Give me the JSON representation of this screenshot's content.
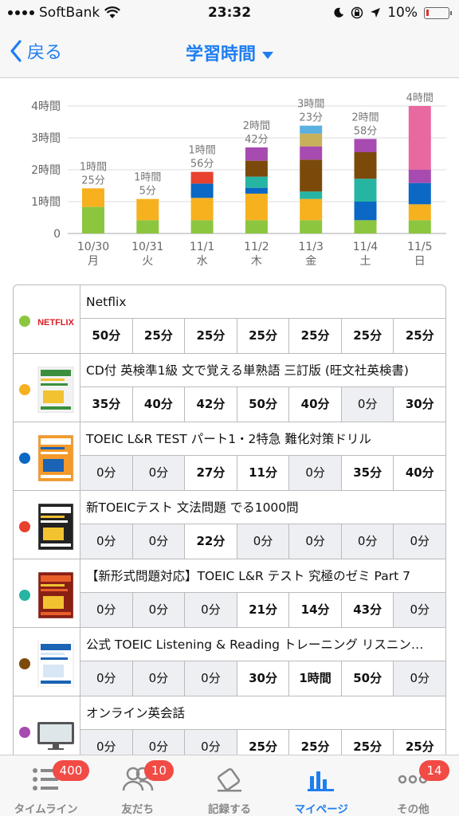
{
  "status_bar": {
    "carrier": "SoftBank",
    "time": "23:32",
    "battery": "10%"
  },
  "nav": {
    "back_label": "戻る",
    "title": "学習時間"
  },
  "colors": {
    "accent": "#1e7ef0",
    "badge": "#f24a45"
  },
  "chart_data": {
    "type": "bar",
    "stacked": true,
    "yticks": [
      "4時間",
      "3時間",
      "2時間",
      "1時間",
      "0"
    ],
    "ylim": [
      0,
      240
    ],
    "categories": [
      {
        "date": "10/30",
        "day": "月",
        "total_hours": "1時間",
        "total_minutes": "25分"
      },
      {
        "date": "10/31",
        "day": "火",
        "total_hours": "1時間",
        "total_minutes": "5分"
      },
      {
        "date": "11/1",
        "day": "水",
        "total_hours": "1時間",
        "total_minutes": "56分"
      },
      {
        "date": "11/2",
        "day": "木",
        "total_hours": "2時間",
        "total_minutes": "42分"
      },
      {
        "date": "11/3",
        "day": "金",
        "total_hours": "3時間",
        "total_minutes": "23分"
      },
      {
        "date": "11/4",
        "day": "土",
        "total_hours": "2時間",
        "total_minutes": "58分"
      },
      {
        "date": "11/5",
        "day": "日",
        "total_hours": "4時間",
        "total_minutes": ""
      }
    ],
    "series": [
      {
        "color": "#8cc63f",
        "values": [
          50,
          25,
          25,
          25,
          25,
          25,
          25
        ]
      },
      {
        "color": "#f7b11f",
        "values": [
          35,
          40,
          42,
          50,
          40,
          0,
          30
        ]
      },
      {
        "color": "#0b68c4",
        "values": [
          0,
          0,
          27,
          11,
          0,
          35,
          40
        ]
      },
      {
        "color": "#e8412e",
        "values": [
          0,
          0,
          22,
          0,
          0,
          0,
          0
        ]
      },
      {
        "color": "#27b5a3",
        "values": [
          0,
          0,
          0,
          21,
          14,
          43,
          0
        ]
      },
      {
        "color": "#7b4a0b",
        "values": [
          0,
          0,
          0,
          30,
          60,
          50,
          0
        ]
      },
      {
        "color": "#a84bb0",
        "values": [
          0,
          0,
          0,
          25,
          25,
          25,
          25
        ]
      },
      {
        "color": "#c8b05a",
        "values": [
          0,
          0,
          0,
          0,
          24,
          0,
          0
        ]
      },
      {
        "color": "#5ab0e0",
        "values": [
          0,
          0,
          0,
          0,
          15,
          0,
          0
        ]
      },
      {
        "color": "#e8699f",
        "values": [
          0,
          0,
          0,
          0,
          0,
          0,
          120
        ]
      }
    ]
  },
  "materials": [
    {
      "title": "Netflix",
      "color": "#8cc63f",
      "icon": "netflix-thumbnail",
      "cells": [
        "50分",
        "25分",
        "25分",
        "25分",
        "25分",
        "25分",
        "25分"
      ]
    },
    {
      "title": "CD付 英検準1級 文で覚える単熟語 三訂版 (旺文社英検書)",
      "color": "#f7b11f",
      "icon": "book-thumbnail",
      "cells": [
        "35分",
        "40分",
        "42分",
        "50分",
        "40分",
        "0分",
        "30分"
      ]
    },
    {
      "title": "TOEIC L&R TEST パート1・2特急 難化対策ドリル",
      "color": "#0b68c4",
      "icon": "book-thumbnail",
      "cells": [
        "0分",
        "0分",
        "27分",
        "11分",
        "0分",
        "35分",
        "40分"
      ]
    },
    {
      "title": "新TOEICテスト 文法問題 でる1000問",
      "color": "#e8412e",
      "icon": "book-thumbnail",
      "cells": [
        "0分",
        "0分",
        "22分",
        "0分",
        "0分",
        "0分",
        "0分"
      ]
    },
    {
      "title": "【新形式問題対応】TOEIC L&R テスト 究極のゼミ Part 7",
      "color": "#27b5a3",
      "icon": "book-thumbnail",
      "cells": [
        "0分",
        "0分",
        "0分",
        "21分",
        "14分",
        "43分",
        "0分"
      ]
    },
    {
      "title": "公式 TOEIC Listening & Reading トレーニング リスニン…",
      "color": "#7b4a0b",
      "icon": "book-thumbnail",
      "cells": [
        "0分",
        "0分",
        "0分",
        "30分",
        "1時間",
        "50分",
        "0分"
      ]
    },
    {
      "title": "オンライン英会話",
      "color": "#a84bb0",
      "icon": "monitor-thumbnail",
      "cells": [
        "0分",
        "0分",
        "0分",
        "25分",
        "25分",
        "25分",
        "25分"
      ]
    }
  ],
  "tabs": [
    {
      "label": "タイムライン",
      "badge": "400",
      "icon": "timeline-icon"
    },
    {
      "label": "友だち",
      "badge": "10",
      "icon": "friends-icon"
    },
    {
      "label": "記録する",
      "badge": "",
      "icon": "record-icon"
    },
    {
      "label": "マイページ",
      "badge": "",
      "icon": "mypage-icon",
      "active": true
    },
    {
      "label": "その他",
      "badge": "14",
      "icon": "more-icon"
    }
  ]
}
